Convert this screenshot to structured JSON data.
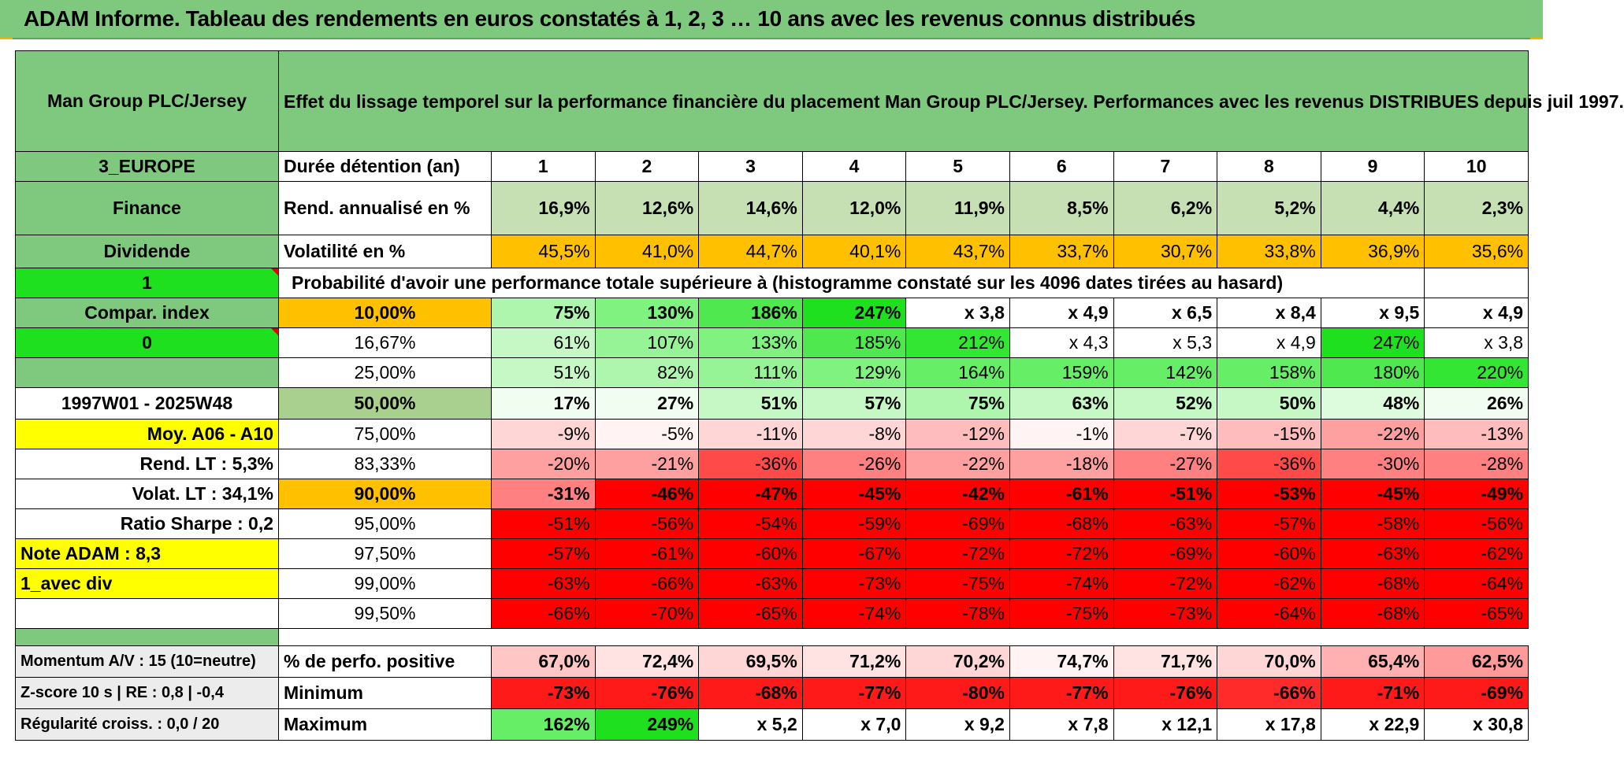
{
  "title": "ADAM Informe. Tableau des rendements en euros constatés à 1, 2, 3 … 10 ans avec les revenus connus distribués",
  "header": {
    "fund_name": "Man Group PLC/Jersey",
    "description": "Effet du lissage temporel sur la performance financière du placement Man Group PLC/Jersey. Performances avec les revenus DISTRIBUES depuis juil 1997."
  },
  "side": {
    "region": "3_EUROPE",
    "sector": "Finance",
    "dividend": "Dividende",
    "flag_value": "1",
    "compar_index": "Compar. index",
    "index_value": "0",
    "period": "1997W01 - 2025W48",
    "moy": "Moy. A06 - A10",
    "rend_lt": "Rend. LT :   5,3%",
    "volat_lt": "Volat. LT :   34,1%",
    "sharpe": "Ratio Sharpe :    0,2",
    "note": "Note ADAM : 8,3",
    "mode": "1_avec div"
  },
  "labels": {
    "duree": "Durée détention (an)",
    "rend": "Rend. annualisé en %",
    "volat": "Volatilité en %",
    "proba": "Probabilité d'avoir une performance totale supérieure à (histogramme constaté sur les 4096 dates tirées au hasard)",
    "positive": "% de perfo. positive",
    "minimum": "Minimum",
    "maximum": "Maximum"
  },
  "years": [
    "1",
    "2",
    "3",
    "4",
    "5",
    "6",
    "7",
    "8",
    "9",
    "10"
  ],
  "rend_values": [
    "16,9%",
    "12,6%",
    "14,6%",
    "12,0%",
    "11,9%",
    "8,5%",
    "6,2%",
    "5,2%",
    "4,4%",
    "2,3%"
  ],
  "volat_values": [
    "45,5%",
    "41,0%",
    "44,7%",
    "40,1%",
    "43,7%",
    "33,7%",
    "30,7%",
    "33,8%",
    "36,9%",
    "35,6%"
  ],
  "quantiles": [
    {
      "pct": "10,00%",
      "values": [
        "75%",
        "130%",
        "186%",
        "247%",
        "x 3,8",
        "x 4,9",
        "x 6,5",
        "x 8,4",
        "x 9,5",
        "x 4,9"
      ]
    },
    {
      "pct": "16,67%",
      "values": [
        "61%",
        "107%",
        "133%",
        "185%",
        "212%",
        "x 4,3",
        "x 5,3",
        "x 4,9",
        "247%",
        "x 3,8"
      ]
    },
    {
      "pct": "25,00%",
      "values": [
        "51%",
        "82%",
        "111%",
        "129%",
        "164%",
        "159%",
        "142%",
        "158%",
        "180%",
        "220%"
      ]
    },
    {
      "pct": "50,00%",
      "values": [
        "17%",
        "27%",
        "51%",
        "57%",
        "75%",
        "63%",
        "52%",
        "50%",
        "48%",
        "26%"
      ]
    },
    {
      "pct": "75,00%",
      "values": [
        "-9%",
        "-5%",
        "-11%",
        "-8%",
        "-12%",
        "-1%",
        "-7%",
        "-15%",
        "-22%",
        "-13%"
      ]
    },
    {
      "pct": "83,33%",
      "values": [
        "-20%",
        "-21%",
        "-36%",
        "-26%",
        "-22%",
        "-18%",
        "-27%",
        "-36%",
        "-30%",
        "-28%"
      ]
    },
    {
      "pct": "90,00%",
      "values": [
        "-31%",
        "-46%",
        "-47%",
        "-45%",
        "-42%",
        "-61%",
        "-51%",
        "-53%",
        "-45%",
        "-49%"
      ]
    },
    {
      "pct": "95,00%",
      "values": [
        "-51%",
        "-56%",
        "-54%",
        "-59%",
        "-69%",
        "-68%",
        "-63%",
        "-57%",
        "-58%",
        "-56%"
      ]
    },
    {
      "pct": "97,50%",
      "values": [
        "-57%",
        "-61%",
        "-60%",
        "-67%",
        "-72%",
        "-72%",
        "-69%",
        "-60%",
        "-63%",
        "-62%"
      ]
    },
    {
      "pct": "99,00%",
      "values": [
        "-63%",
        "-66%",
        "-63%",
        "-73%",
        "-75%",
        "-74%",
        "-72%",
        "-62%",
        "-68%",
        "-64%"
      ]
    },
    {
      "pct": "99,50%",
      "values": [
        "-66%",
        "-70%",
        "-65%",
        "-74%",
        "-78%",
        "-75%",
        "-73%",
        "-64%",
        "-68%",
        "-65%"
      ]
    }
  ],
  "footer": {
    "momentum": "Momentum A/V : 15 (10=neutre)",
    "zscore": "Z-score 10 s | RE : 0,8 | -0,4",
    "regularite": "Régularité croiss. : 0,0 / 20",
    "positive_values": [
      "67,0%",
      "72,4%",
      "69,5%",
      "71,2%",
      "70,2%",
      "74,7%",
      "71,7%",
      "70,0%",
      "65,4%",
      "62,5%"
    ],
    "minimum_values": [
      "-73%",
      "-76%",
      "-68%",
      "-77%",
      "-80%",
      "-77%",
      "-76%",
      "-66%",
      "-71%",
      "-69%"
    ],
    "maximum_values": [
      "162%",
      "249%",
      "x 5,2",
      "x 7,0",
      "x 9,2",
      "x 7,8",
      "x 12,1",
      "x 17,8",
      "x 22,9",
      "x 30,8"
    ]
  },
  "colors": {
    "header_green": "#7fc97f",
    "bright_green": "#1fe01f",
    "highlight_yellow": "#ffff00",
    "volatility_orange": "#ffc000",
    "label_red": "#e00000"
  }
}
